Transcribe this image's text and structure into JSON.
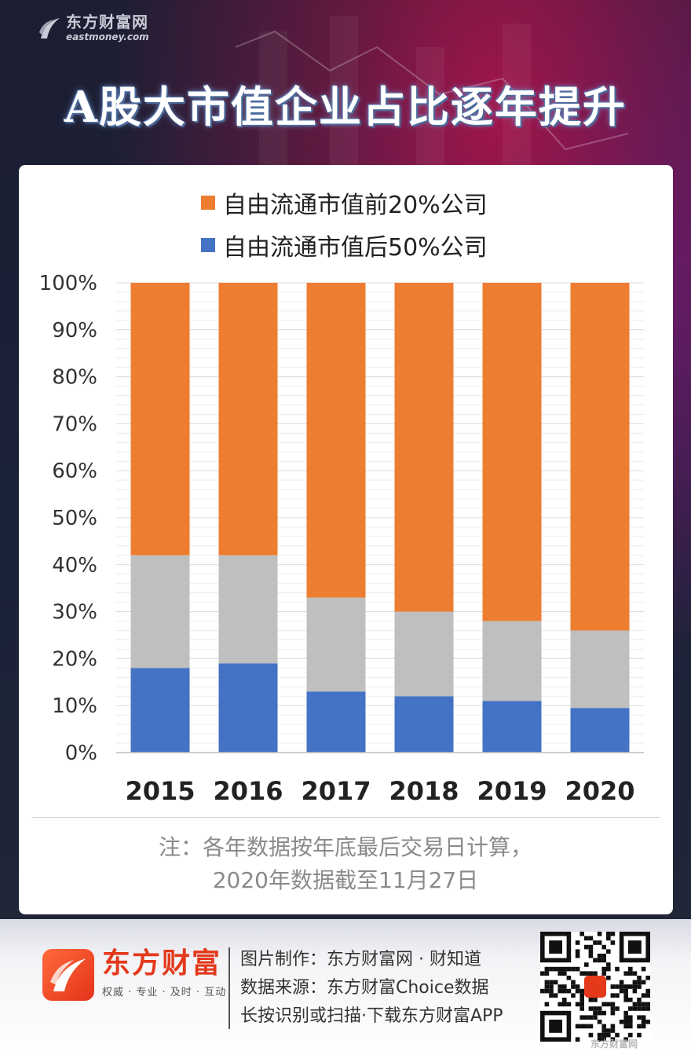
{
  "header": {
    "brand_cn": "东方财富网",
    "brand_en": "eastmoney.com",
    "title": "A股大市值企业占比逐年提升"
  },
  "legend": [
    {
      "label": "自由流通市值前20%公司",
      "color": "#ED7D31"
    },
    {
      "label": "自由流通市值后50%公司",
      "color": "#4472C4"
    }
  ],
  "chart_data": {
    "type": "bar",
    "stacked": true,
    "categories": [
      "2015",
      "2016",
      "2017",
      "2018",
      "2019",
      "2020"
    ],
    "series": [
      {
        "name": "自由流通市值后50%公司",
        "color": "#4472C4",
        "values": [
          18,
          19,
          13,
          12,
          11,
          9.5
        ]
      },
      {
        "color": "#BFBFBF",
        "values": [
          24,
          23,
          20,
          18,
          17,
          16.5
        ]
      },
      {
        "name": "自由流通市值前20%公司",
        "color": "#ED7D31",
        "values": [
          58,
          58,
          67,
          70,
          72,
          74
        ]
      }
    ],
    "ylim": [
      0,
      100
    ],
    "yticks": [
      "0%",
      "10%",
      "20%",
      "30%",
      "40%",
      "50%",
      "60%",
      "70%",
      "80%",
      "90%",
      "100%"
    ],
    "grid": true,
    "legend_position": "top"
  },
  "note": {
    "line1": "注：各年数据按年底最后交易日计算，",
    "line2": "2020年数据截至11月27日"
  },
  "footer": {
    "brand_name": "东方财富",
    "slogan": "权威 · 专业 · 及时 · 互动",
    "credits": [
      "图片制作：东方财富网 · 财知道",
      "数据来源：东方财富Choice数据",
      "长按识别或扫描·下载东方财富APP"
    ],
    "qr_caption": "东方财富网"
  }
}
